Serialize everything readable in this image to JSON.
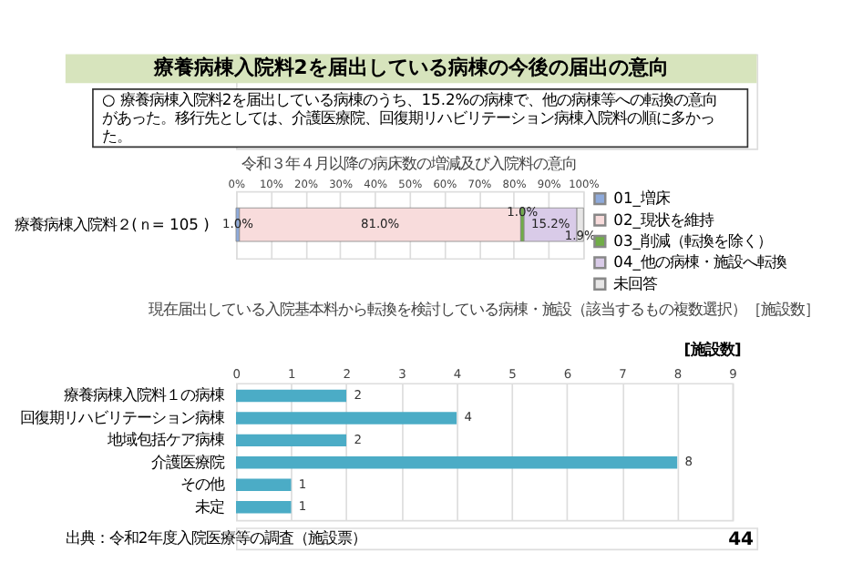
{
  "chart_data": [
    {
      "type": "bar",
      "orientation": "horizontal",
      "stacked": true,
      "title": "令和３年４月以降の病床数の増減及び入院料の意向",
      "categories": [
        "療養病棟入院料２(ｎ= 105 )"
      ],
      "series": [
        {
          "name": "01_増床",
          "color": "#8eaadb",
          "values": [
            1.0
          ],
          "value_labels": [
            "1.0%"
          ]
        },
        {
          "name": "02_現状を維持",
          "color": "#f8dcdc",
          "values": [
            81.0
          ],
          "value_labels": [
            "81.0%"
          ]
        },
        {
          "name": "03_削減（転換を除く）",
          "color": "#70ad47",
          "values": [
            1.0
          ],
          "value_labels": [
            "1.0%"
          ]
        },
        {
          "name": "04_他の病棟・施設へ転換",
          "color": "#d9cbe8",
          "values": [
            15.2
          ],
          "value_labels": [
            "15.2%"
          ]
        },
        {
          "name": "未回答",
          "color": "#e7e6e6",
          "values": [
            1.9
          ],
          "value_labels": [
            "1.9%"
          ]
        }
      ],
      "xlim": [
        0,
        100
      ],
      "xticks": [
        {
          "value": 0,
          "label": "0%"
        },
        {
          "value": 10,
          "label": "10%"
        },
        {
          "value": 20,
          "label": "20%"
        },
        {
          "value": 30,
          "label": "30%"
        },
        {
          "value": 40,
          "label": "40%"
        },
        {
          "value": 50,
          "label": "50%"
        },
        {
          "value": 60,
          "label": "60%"
        },
        {
          "value": 70,
          "label": "70%"
        },
        {
          "value": 80,
          "label": "80%"
        },
        {
          "value": 90,
          "label": "90%"
        },
        {
          "value": 100,
          "label": "100%"
        }
      ],
      "grid": "x",
      "legend": "right",
      "annotations": [
        "療養病棟入院料2を届出している病棟の今後の届出の意向",
        "○ 療養病棟入院料2を届出している病棟のうち、15.2%の病棟で、他の病棟等への転換の意向があった。移行先としては、介護医療院、回復期リハビリテーション病棟入院料の順に多かった。"
      ]
    },
    {
      "type": "bar",
      "orientation": "horizontal",
      "title": "現在届出している入院基本料から転換を検討している病棟・施設（該当するもの複数選択）［施設数］",
      "categories": [
        "療養病棟入院料１の病棟",
        "回復期リハビリテーション病棟",
        "地域包括ケア病棟",
        "介護医療院",
        "その他",
        "未定"
      ],
      "values": [
        2,
        4,
        2,
        8,
        1,
        1
      ],
      "color": "#4bacc6",
      "xlim": [
        0,
        9
      ],
      "xticks": [
        0,
        1,
        2,
        3,
        4,
        5,
        6,
        7,
        8,
        9
      ],
      "grid": "x",
      "data_labels": true,
      "annotations": [
        "[施設数]",
        "出典：令和2年度入院医療等の調査（施設票）",
        "44"
      ]
    }
  ]
}
